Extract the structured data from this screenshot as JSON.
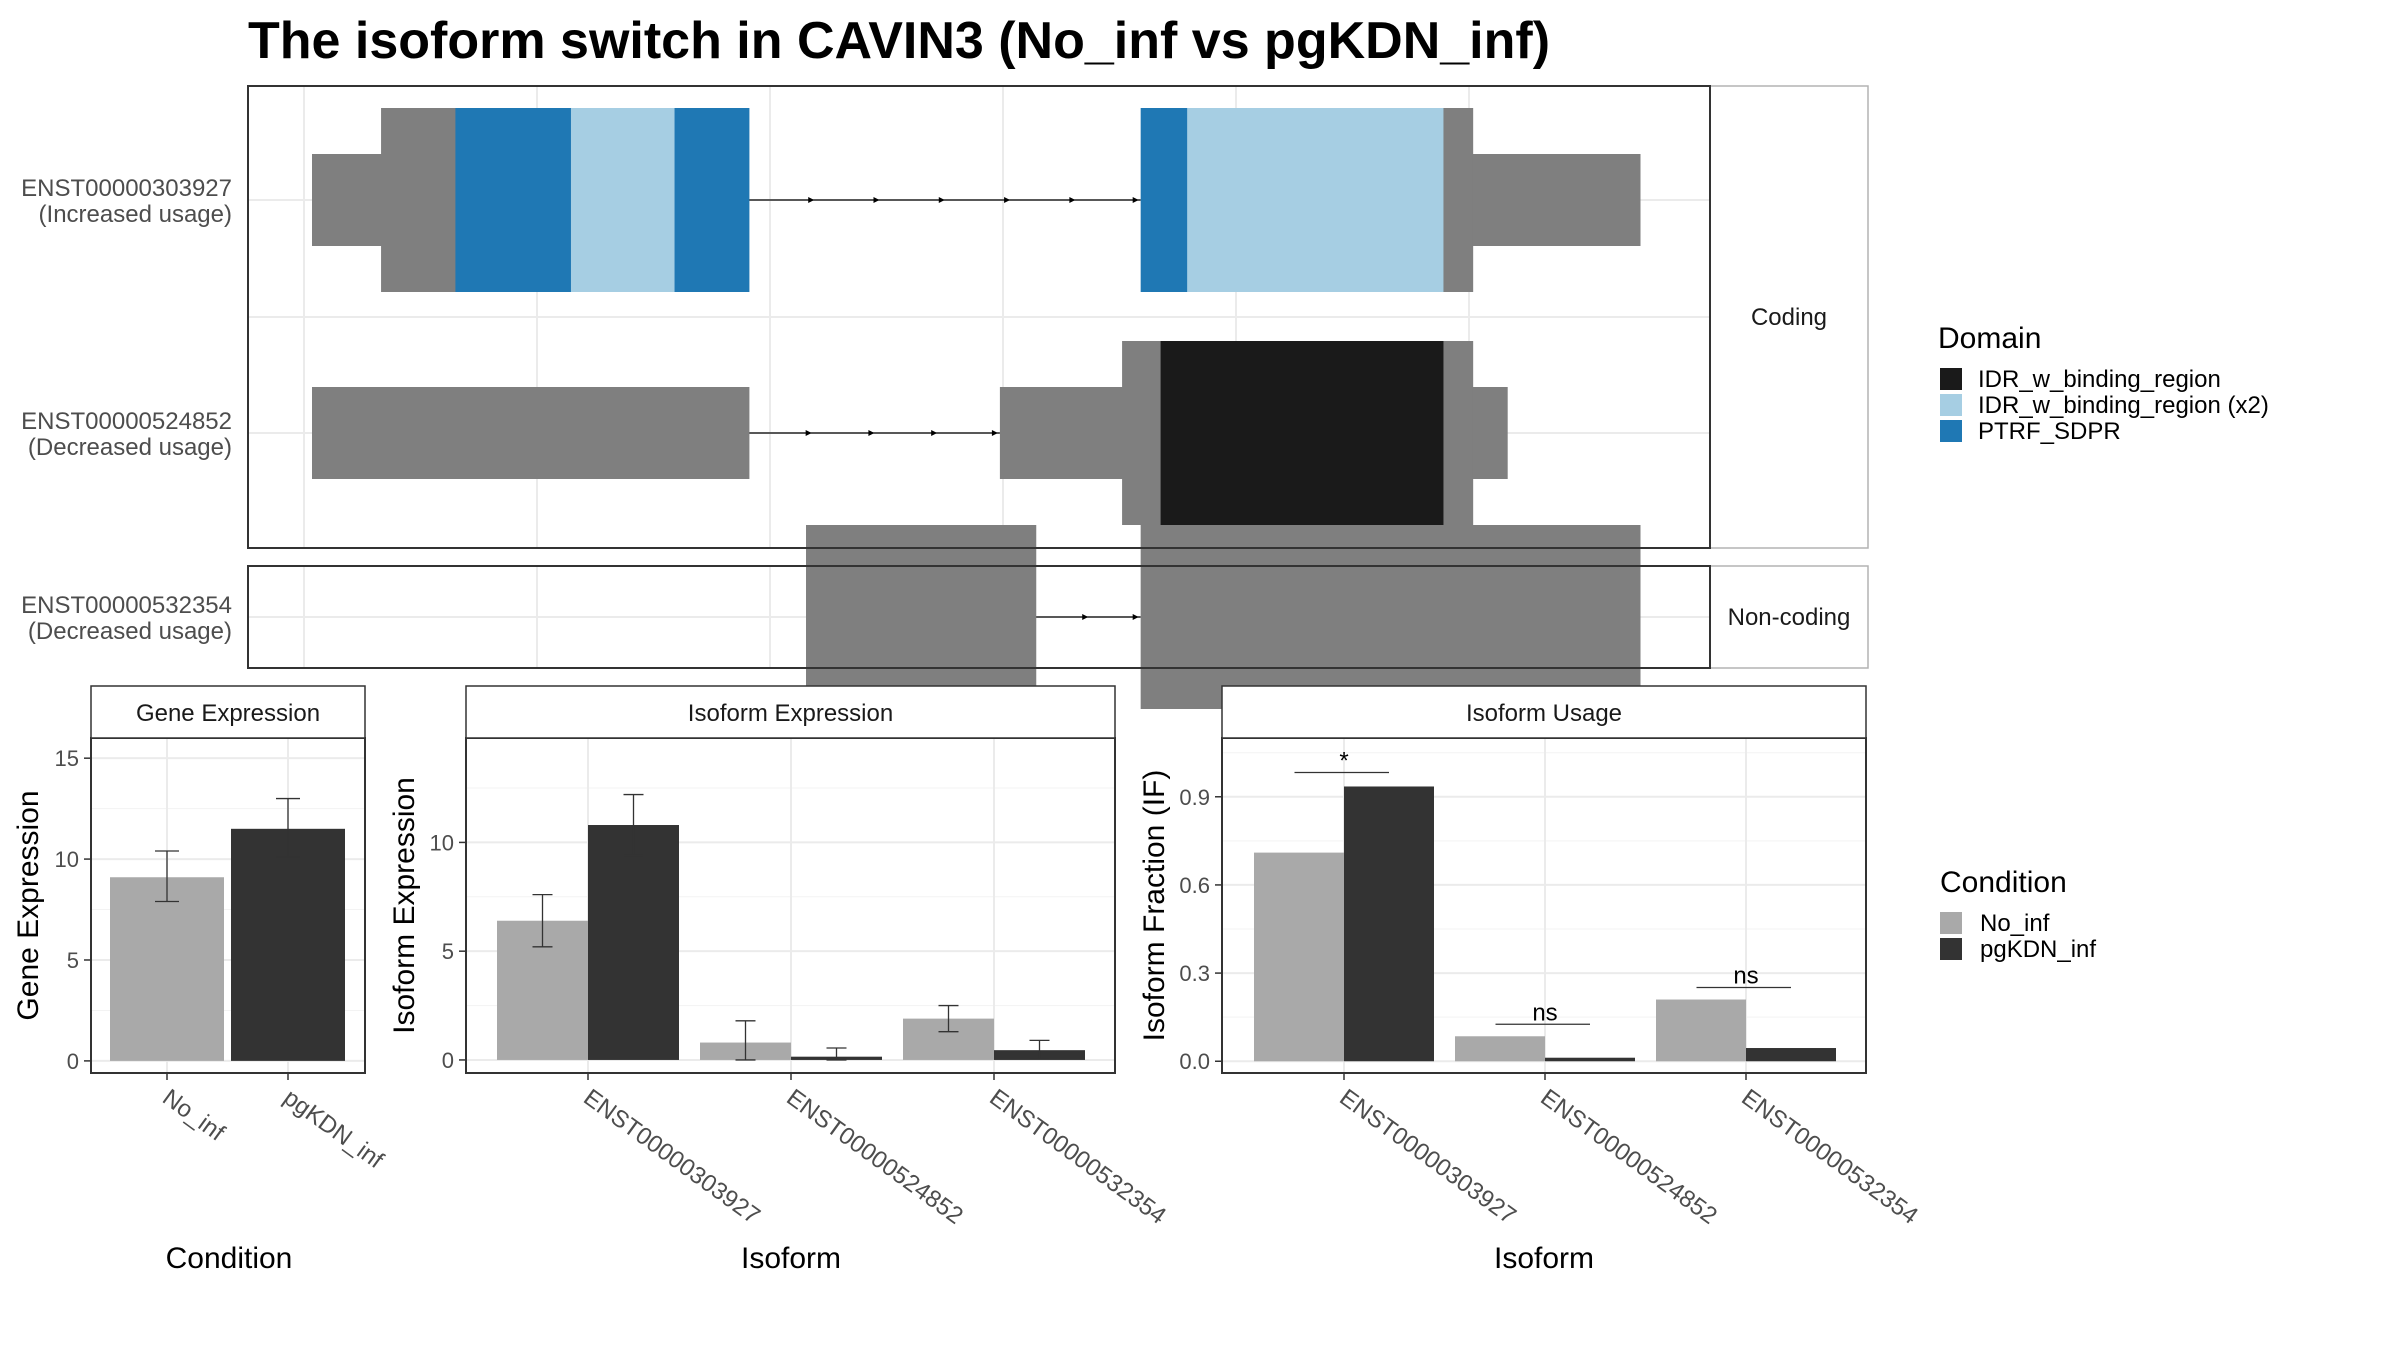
{
  "title": "The isoform switch in CAVIN3 (No_inf vs pgKDN_inf)",
  "colors": {
    "IDR_w_binding_region": "#1a1a1a",
    "IDR_w_binding_region (x2)": "#a6cee3",
    "PTRF_SDPR": "#1f78b4",
    "exon": "#7f7f7f",
    "No_inf": "#a9a9a9",
    "pgKDN_inf": "#333333",
    "grid": "#ebebeb",
    "strip_bg": "#ffffff"
  },
  "structure": {
    "facets": [
      {
        "label": "Coding"
      },
      {
        "label": "Non-coding"
      }
    ],
    "transcripts": [
      {
        "id": "ENST00000303927",
        "usage": "(Increased usage)",
        "facet": "Coding",
        "exons": [
          {
            "segments": [
              {
                "from": 0.0,
                "to": 0.052,
                "h": "utr"
              },
              {
                "from": 0.052,
                "to": 0.108,
                "h": "cds"
              },
              {
                "from": 0.108,
                "to": 0.195,
                "h": "cds",
                "domain": "PTRF_SDPR"
              },
              {
                "from": 0.195,
                "to": 0.273,
                "h": "cds",
                "domain": "IDR_w_binding_region (x2)"
              },
              {
                "from": 0.273,
                "to": 0.329,
                "h": "cds",
                "domain": "PTRF_SDPR"
              }
            ]
          },
          {
            "segments": [
              {
                "from": 0.624,
                "to": 0.659,
                "h": "cds",
                "domain": "PTRF_SDPR"
              },
              {
                "from": 0.659,
                "to": 0.852,
                "h": "cds",
                "domain": "IDR_w_binding_region (x2)"
              },
              {
                "from": 0.852,
                "to": 0.874,
                "h": "cds"
              },
              {
                "from": 0.874,
                "to": 1.0,
                "h": "utr"
              }
            ]
          }
        ]
      },
      {
        "id": "ENST00000524852",
        "usage": "(Decreased usage)",
        "facet": "Coding",
        "exons": [
          {
            "segments": [
              {
                "from": 0.0,
                "to": 0.329,
                "h": "utr"
              }
            ]
          },
          {
            "segments": [
              {
                "from": 0.518,
                "to": 0.61,
                "h": "utr"
              },
              {
                "from": 0.61,
                "to": 0.639,
                "h": "cds"
              },
              {
                "from": 0.639,
                "to": 0.852,
                "h": "cds",
                "domain": "IDR_w_binding_region"
              },
              {
                "from": 0.852,
                "to": 0.874,
                "h": "cds"
              },
              {
                "from": 0.874,
                "to": 0.9,
                "h": "utr"
              }
            ]
          }
        ]
      },
      {
        "id": "ENST00000532354",
        "usage": "(Decreased usage)",
        "facet": "Non-coding",
        "exons": [
          {
            "segments": [
              {
                "from": 0.372,
                "to": 0.545,
                "h": "full"
              }
            ]
          },
          {
            "segments": [
              {
                "from": 0.624,
                "to": 1.0,
                "h": "full"
              }
            ]
          }
        ]
      }
    ],
    "legend_title": "Domain",
    "legend": [
      "IDR_w_binding_region",
      "IDR_w_binding_region (x2)",
      "PTRF_SDPR"
    ]
  },
  "chart_data": [
    {
      "type": "bar",
      "title": "Gene Expression",
      "xlabel": "Condition",
      "ylabel": "Gene Expression",
      "categories": [
        "No_inf",
        "pgKDN_inf"
      ],
      "values": [
        9.1,
        11.5
      ],
      "errors": [
        [
          7.9,
          10.4
        ],
        [
          10.1,
          13.0
        ]
      ],
      "ylim": [
        -0.6,
        16.0
      ],
      "yticks": [
        0,
        5,
        10,
        15
      ],
      "ytick_labels": [
        "0",
        "5",
        "10",
        "15"
      ]
    },
    {
      "type": "bar",
      "title": "Isoform Expression",
      "xlabel": "Isoform",
      "ylabel": "Isoform Expression",
      "categories": [
        "ENST00000303927",
        "ENST00000524852",
        "ENST00000532354"
      ],
      "series": [
        {
          "name": "No_inf",
          "values": [
            6.4,
            0.8,
            1.9
          ],
          "errors": [
            [
              5.2,
              7.6
            ],
            [
              0.0,
              1.8
            ],
            [
              1.3,
              2.5
            ]
          ]
        },
        {
          "name": "pgKDN_inf",
          "values": [
            10.8,
            0.15,
            0.45
          ],
          "errors": [
            [
              9.4,
              12.2
            ],
            [
              0.0,
              0.55
            ],
            [
              0.05,
              0.9
            ]
          ]
        }
      ],
      "ylim": [
        -0.6,
        14.8
      ],
      "yticks": [
        0,
        5,
        10
      ],
      "ytick_labels": [
        "0",
        "5",
        "10"
      ]
    },
    {
      "type": "bar",
      "title": "Isoform Usage",
      "xlabel": "Isoform",
      "ylabel": "Isoform Fraction (IF)",
      "categories": [
        "ENST00000303927",
        "ENST00000524852",
        "ENST00000532354"
      ],
      "series": [
        {
          "name": "No_inf",
          "values": [
            0.71,
            0.085,
            0.21
          ]
        },
        {
          "name": "pgKDN_inf",
          "values": [
            0.935,
            0.012,
            0.045
          ]
        }
      ],
      "significance": [
        "*",
        "ns",
        "ns"
      ],
      "ylim": [
        -0.04,
        1.1
      ],
      "yticks": [
        0,
        0.3,
        0.6,
        0.9
      ],
      "ytick_labels": [
        "0.0",
        "0.3",
        "0.6",
        "0.9"
      ]
    }
  ],
  "condition_legend": {
    "title": "Condition",
    "items": [
      "No_inf",
      "pgKDN_inf"
    ]
  }
}
